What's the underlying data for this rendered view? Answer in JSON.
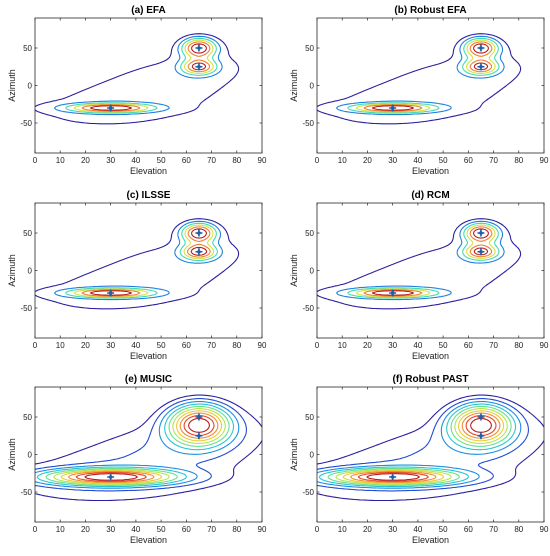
{
  "chart_data": [
    {
      "type": "contour",
      "title": "(a) EFA",
      "xlabel": "Elevation",
      "ylabel": "Azimuth",
      "xlim": [
        0,
        90
      ],
      "ylim": [
        -90,
        90
      ],
      "xticks": [
        0,
        10,
        20,
        30,
        40,
        50,
        60,
        70,
        80,
        90
      ],
      "yticks": [
        50,
        0,
        -50
      ],
      "levels": 6,
      "peaks": [
        {
          "x": 65,
          "y": 50,
          "amp": 1.0,
          "sx": 4.5,
          "sy": 9
        },
        {
          "x": 65,
          "y": 25,
          "amp": 0.85,
          "sx": 4.5,
          "sy": 7
        },
        {
          "x": 30,
          "y": -30,
          "amp": 0.95,
          "sx": 11,
          "sy": 4
        }
      ],
      "estimates": [
        {
          "x": 65,
          "y": 50
        },
        {
          "x": 65,
          "y": 25
        },
        {
          "x": 30,
          "y": -30
        }
      ]
    },
    {
      "type": "contour",
      "title": "(b) Robust EFA",
      "xlabel": "Elevation",
      "ylabel": "Azimuth",
      "xlim": [
        0,
        90
      ],
      "ylim": [
        -90,
        90
      ],
      "xticks": [
        0,
        10,
        20,
        30,
        40,
        50,
        60,
        70,
        80,
        90
      ],
      "yticks": [
        50,
        0,
        -50
      ],
      "levels": 6,
      "peaks": [
        {
          "x": 65,
          "y": 50,
          "amp": 1.0,
          "sx": 4.5,
          "sy": 9
        },
        {
          "x": 65,
          "y": 25,
          "amp": 0.85,
          "sx": 4.5,
          "sy": 7
        },
        {
          "x": 30,
          "y": -30,
          "amp": 0.95,
          "sx": 11,
          "sy": 4
        }
      ],
      "estimates": [
        {
          "x": 65,
          "y": 50
        },
        {
          "x": 65,
          "y": 25
        },
        {
          "x": 30,
          "y": -30
        }
      ]
    },
    {
      "type": "contour",
      "title": "(c) ILSSE",
      "xlabel": "Elevation",
      "ylabel": "Azimuth",
      "xlim": [
        0,
        90
      ],
      "ylim": [
        -90,
        90
      ],
      "xticks": [
        0,
        10,
        20,
        30,
        40,
        50,
        60,
        70,
        80,
        90
      ],
      "yticks": [
        50,
        0,
        -50
      ],
      "levels": 6,
      "peaks": [
        {
          "x": 65,
          "y": 50,
          "amp": 1.0,
          "sx": 4.5,
          "sy": 9
        },
        {
          "x": 65,
          "y": 25,
          "amp": 0.9,
          "sx": 4.5,
          "sy": 7
        },
        {
          "x": 30,
          "y": -30,
          "amp": 0.95,
          "sx": 11,
          "sy": 4
        }
      ],
      "estimates": [
        {
          "x": 65,
          "y": 50
        },
        {
          "x": 65,
          "y": 25
        },
        {
          "x": 30,
          "y": -30
        }
      ]
    },
    {
      "type": "contour",
      "title": "(d) RCM",
      "xlabel": "Elevation",
      "ylabel": "Azimuth",
      "xlim": [
        0,
        90
      ],
      "ylim": [
        -90,
        90
      ],
      "xticks": [
        0,
        10,
        20,
        30,
        40,
        50,
        60,
        70,
        80,
        90
      ],
      "yticks": [
        50,
        0,
        -50
      ],
      "levels": 6,
      "peaks": [
        {
          "x": 65,
          "y": 50,
          "amp": 1.0,
          "sx": 4.5,
          "sy": 9
        },
        {
          "x": 65,
          "y": 25,
          "amp": 0.85,
          "sx": 4.5,
          "sy": 7
        },
        {
          "x": 30,
          "y": -30,
          "amp": 0.95,
          "sx": 11,
          "sy": 4
        }
      ],
      "estimates": [
        {
          "x": 65,
          "y": 50
        },
        {
          "x": 65,
          "y": 25
        },
        {
          "x": 30,
          "y": -30
        }
      ]
    },
    {
      "type": "contour",
      "title": "(e) MUSIC",
      "xlabel": "Elevation",
      "ylabel": "Azimuth",
      "xlim": [
        0,
        90
      ],
      "ylim": [
        -90,
        90
      ],
      "xticks": [
        0,
        10,
        20,
        30,
        40,
        50,
        60,
        70,
        80,
        90
      ],
      "yticks": [
        50,
        0,
        -50
      ],
      "levels": 10,
      "peaks": [
        {
          "x": 65,
          "y": 40,
          "amp": 1.0,
          "sx": 8,
          "sy": 18
        },
        {
          "x": 30,
          "y": -30,
          "amp": 1.0,
          "sx": 17,
          "sy": 7
        }
      ],
      "estimates": [
        {
          "x": 65,
          "y": 50
        },
        {
          "x": 65,
          "y": 25
        },
        {
          "x": 30,
          "y": -30
        }
      ]
    },
    {
      "type": "contour",
      "title": "(f) Robust PAST",
      "xlabel": "Elevation",
      "ylabel": "Azimuth",
      "xlim": [
        0,
        90
      ],
      "ylim": [
        -90,
        90
      ],
      "xticks": [
        0,
        10,
        20,
        30,
        40,
        50,
        60,
        70,
        80,
        90
      ],
      "yticks": [
        50,
        0,
        -50
      ],
      "levels": 10,
      "peaks": [
        {
          "x": 65,
          "y": 40,
          "amp": 1.0,
          "sx": 8,
          "sy": 18
        },
        {
          "x": 30,
          "y": -30,
          "amp": 1.0,
          "sx": 17,
          "sy": 7
        }
      ],
      "estimates": [
        {
          "x": 65,
          "y": 50
        },
        {
          "x": 65,
          "y": 25
        },
        {
          "x": 30,
          "y": -30
        }
      ]
    }
  ],
  "colors": {
    "contour_scale": [
      "#2a1f9e",
      "#1f50d8",
      "#1da0e6",
      "#2fd8c8",
      "#8fe860",
      "#e6e03a",
      "#f2a030",
      "#e84a28",
      "#b81818"
    ],
    "marker": "#1f5fa8",
    "frame": "#262626"
  }
}
